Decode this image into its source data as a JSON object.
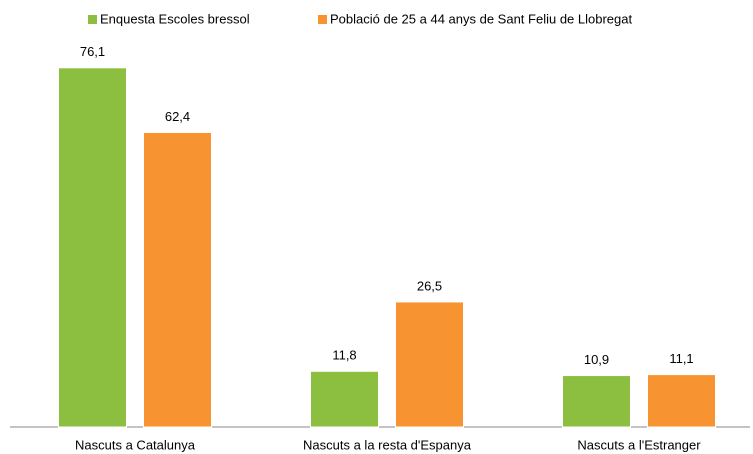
{
  "chart_data": {
    "type": "bar",
    "categories": [
      "Nascuts a Catalunya",
      "Nascuts a la resta d'Espanya",
      "Nascuts a l'Estranger"
    ],
    "series": [
      {
        "name": "Enquesta Escoles bressol",
        "color": "#8cbf3f",
        "values": [
          76.1,
          11.8,
          10.9
        ],
        "value_labels": [
          "76,1",
          "11,8",
          "10,9"
        ]
      },
      {
        "name": "Població de 25 a 44 anys de Sant Feliu de Llobregat",
        "color": "#f79330",
        "values": [
          62.4,
          26.5,
          11.1
        ],
        "value_labels": [
          "62,4",
          "26,5",
          "11,1"
        ]
      }
    ],
    "ylim": [
      0,
      80
    ],
    "legend": "top"
  }
}
